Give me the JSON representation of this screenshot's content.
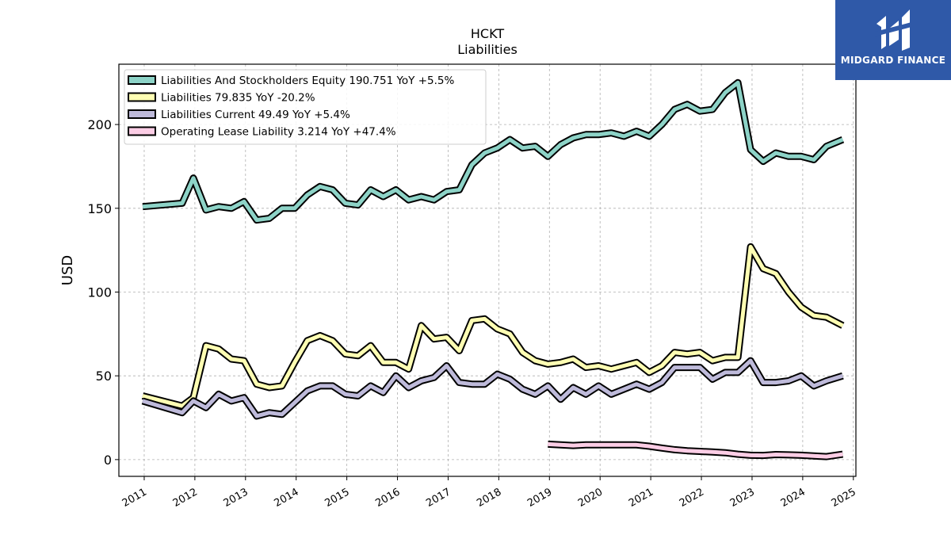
{
  "brand": {
    "name": "MIDGARD FINANCE",
    "bg_color": "#2f59a8",
    "icon": "midgard-logo-mark"
  },
  "chart_data": {
    "type": "line",
    "title": "HCKT",
    "subtitle": "Liabilities",
    "xlabel": "",
    "ylabel": "USD",
    "xlim": [
      2010.5,
      2025.05
    ],
    "ylim": [
      -10,
      236
    ],
    "grid": true,
    "legend_position": "top-left",
    "yticks": [
      0,
      50,
      100,
      150,
      200
    ],
    "xticks": [
      "2011",
      "2012",
      "2013",
      "2014",
      "2015",
      "2016",
      "2017",
      "2018",
      "2019",
      "2020",
      "2021",
      "2022",
      "2023",
      "2024",
      "2025"
    ],
    "series": [
      {
        "name": "Liabilities And Stockholders Equity",
        "legend": "Liabilities And Stockholders Equity  190.751 YoY +5.5%",
        "color": "#8dd3c7",
        "x": [
          2010.97,
          2011.75,
          2011.97,
          2012.22,
          2012.47,
          2012.72,
          2012.97,
          2013.22,
          2013.47,
          2013.72,
          2013.97,
          2014.22,
          2014.47,
          2014.72,
          2014.97,
          2015.22,
          2015.47,
          2015.72,
          2015.97,
          2016.22,
          2016.47,
          2016.72,
          2016.97,
          2017.22,
          2017.47,
          2017.72,
          2017.97,
          2018.22,
          2018.47,
          2018.72,
          2018.97,
          2019.22,
          2019.47,
          2019.72,
          2019.97,
          2020.22,
          2020.47,
          2020.72,
          2020.97,
          2021.22,
          2021.47,
          2021.72,
          2021.97,
          2022.22,
          2022.47,
          2022.72,
          2022.97,
          2023.22,
          2023.47,
          2023.72,
          2023.97,
          2024.22,
          2024.47,
          2024.79
        ],
        "values": [
          151,
          153,
          168,
          149,
          151,
          150,
          154,
          143,
          144,
          150,
          150,
          158,
          163,
          161,
          153,
          152,
          161,
          157,
          161,
          155,
          157,
          155,
          160,
          161,
          176,
          183,
          186,
          191,
          186,
          187,
          181,
          188,
          192,
          194,
          194,
          195,
          193,
          196,
          193,
          200,
          209,
          212,
          208,
          209,
          219,
          225,
          185,
          178,
          183,
          181,
          181,
          179,
          187,
          191
        ]
      },
      {
        "name": "Liabilities",
        "legend": "Liabilities  79.835 YoY -20.2%",
        "color": "#ffffb3",
        "x": [
          2010.97,
          2011.75,
          2011.97,
          2012.22,
          2012.47,
          2012.72,
          2012.97,
          2013.22,
          2013.47,
          2013.72,
          2013.97,
          2014.22,
          2014.47,
          2014.72,
          2014.97,
          2015.22,
          2015.47,
          2015.72,
          2015.97,
          2016.22,
          2016.47,
          2016.72,
          2016.97,
          2017.22,
          2017.47,
          2017.72,
          2017.97,
          2018.22,
          2018.47,
          2018.72,
          2018.97,
          2019.22,
          2019.47,
          2019.72,
          2019.97,
          2020.22,
          2020.47,
          2020.72,
          2020.97,
          2021.22,
          2021.47,
          2021.72,
          2021.97,
          2022.22,
          2022.47,
          2022.72,
          2022.97,
          2023.22,
          2023.47,
          2023.72,
          2023.97,
          2024.22,
          2024.47,
          2024.79
        ],
        "values": [
          38,
          32,
          37,
          68,
          66,
          60,
          59,
          45,
          43,
          44,
          58,
          71,
          74,
          71,
          63,
          62,
          68,
          58,
          58,
          54,
          80,
          72,
          73,
          65,
          83,
          84,
          78,
          75,
          64,
          59,
          57,
          58,
          60,
          55,
          56,
          54,
          56,
          58,
          52,
          56,
          64,
          63,
          64,
          59,
          61,
          61,
          127,
          114,
          111,
          100,
          91,
          86,
          85,
          80
        ]
      },
      {
        "name": "Liabilities Current",
        "legend": "Liabilities Current  49.49 YoY +5.4%",
        "color": "#bebada",
        "x": [
          2010.97,
          2011.75,
          2011.97,
          2012.22,
          2012.47,
          2012.72,
          2012.97,
          2013.22,
          2013.47,
          2013.72,
          2013.97,
          2014.22,
          2014.47,
          2014.72,
          2014.97,
          2015.22,
          2015.47,
          2015.72,
          2015.97,
          2016.22,
          2016.47,
          2016.72,
          2016.97,
          2017.22,
          2017.47,
          2017.72,
          2017.97,
          2018.22,
          2018.47,
          2018.72,
          2018.97,
          2019.22,
          2019.47,
          2019.72,
          2019.97,
          2020.22,
          2020.47,
          2020.72,
          2020.97,
          2021.22,
          2021.47,
          2021.72,
          2021.97,
          2022.22,
          2022.47,
          2022.72,
          2022.97,
          2023.22,
          2023.47,
          2023.72,
          2023.97,
          2024.22,
          2024.47,
          2024.79
        ],
        "values": [
          35,
          28,
          35,
          31,
          39,
          35,
          37,
          26,
          28,
          27,
          34,
          41,
          44,
          44,
          39,
          38,
          44,
          40,
          50,
          43,
          47,
          49,
          56,
          46,
          45,
          45,
          51,
          48,
          42,
          39,
          44,
          36,
          43,
          39,
          44,
          39,
          42,
          45,
          42,
          46,
          55,
          55,
          55,
          48,
          52,
          52,
          59,
          46,
          46,
          47,
          50,
          44,
          47,
          50
        ]
      },
      {
        "name": "Operating Lease Liability",
        "legend": "Operating Lease Liability  3.214 YoY +47.4%",
        "color": "#fccde5",
        "x": [
          2018.97,
          2019.47,
          2019.72,
          2019.97,
          2020.22,
          2020.47,
          2020.72,
          2020.97,
          2021.22,
          2021.47,
          2021.72,
          2021.97,
          2022.22,
          2022.47,
          2022.72,
          2022.97,
          2023.22,
          2023.47,
          2023.72,
          2023.97,
          2024.22,
          2024.47,
          2024.79
        ],
        "values": [
          9.2,
          8.4,
          8.8,
          8.8,
          8.8,
          8.8,
          8.8,
          8.0,
          6.9,
          5.9,
          5.3,
          4.9,
          4.5,
          4.1,
          3.2,
          2.6,
          2.5,
          3.0,
          2.8,
          2.6,
          2.2,
          1.8,
          3.2
        ]
      }
    ]
  }
}
